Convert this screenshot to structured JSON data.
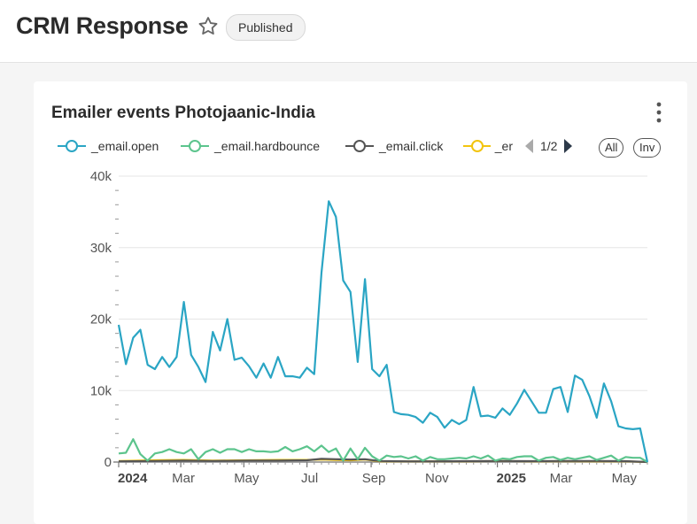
{
  "page": {
    "title": "CRM Response",
    "status_badge": "Published"
  },
  "card": {
    "title": "Emailer events Photojaanic-India",
    "legend": {
      "items": [
        {
          "label": "_email.open",
          "color": "#2aa5c4"
        },
        {
          "label": "_email.hardbounce",
          "color": "#5cc48d"
        },
        {
          "label": "_email.click",
          "color": "#555555"
        },
        {
          "label": "_er",
          "color": "#f2c40f"
        }
      ],
      "page": "1/2",
      "all_label": "All",
      "inv_label": "Inv"
    }
  },
  "chart_data": {
    "type": "line",
    "title": "Emailer events Photojaanic-India",
    "xlabel": "",
    "ylabel": "",
    "ylim": [
      0,
      40000
    ],
    "y_ticks": [
      0,
      10000,
      20000,
      30000,
      40000
    ],
    "y_tick_labels": [
      "0",
      "10k",
      "20k",
      "30k",
      "40k"
    ],
    "x_ticks": [
      {
        "date": "2024-01-01",
        "label": "2024",
        "bold": true
      },
      {
        "date": "2024-03-01",
        "label": "Mar"
      },
      {
        "date": "2024-05-01",
        "label": "May"
      },
      {
        "date": "2024-07-01",
        "label": "Jul"
      },
      {
        "date": "2024-09-01",
        "label": "Sep"
      },
      {
        "date": "2024-11-01",
        "label": "Nov"
      },
      {
        "date": "2025-01-01",
        "label": "2025",
        "bold": true
      },
      {
        "date": "2025-03-01",
        "label": "Mar"
      },
      {
        "date": "2025-05-01",
        "label": "May"
      }
    ],
    "x_range": [
      "2024-01-01",
      "2025-05-26"
    ],
    "grid": true,
    "legend_position": "top",
    "series": [
      {
        "name": "_email.open",
        "color": "#2aa5c4",
        "points": [
          [
            "2024-01-01",
            19200
          ],
          [
            "2024-01-08",
            13700
          ],
          [
            "2024-01-15",
            17400
          ],
          [
            "2024-01-22",
            18500
          ],
          [
            "2024-01-29",
            13600
          ],
          [
            "2024-02-05",
            13000
          ],
          [
            "2024-02-12",
            14700
          ],
          [
            "2024-02-19",
            13300
          ],
          [
            "2024-02-26",
            14700
          ],
          [
            "2024-03-04",
            22400
          ],
          [
            "2024-03-11",
            15000
          ],
          [
            "2024-03-18",
            13300
          ],
          [
            "2024-03-25",
            11200
          ],
          [
            "2024-04-01",
            18200
          ],
          [
            "2024-04-08",
            15600
          ],
          [
            "2024-04-15",
            20000
          ],
          [
            "2024-04-22",
            14300
          ],
          [
            "2024-04-29",
            14600
          ],
          [
            "2024-05-06",
            13400
          ],
          [
            "2024-05-13",
            11800
          ],
          [
            "2024-05-20",
            13800
          ],
          [
            "2024-05-27",
            11800
          ],
          [
            "2024-06-03",
            14700
          ],
          [
            "2024-06-10",
            12000
          ],
          [
            "2024-06-17",
            12000
          ],
          [
            "2024-06-24",
            11800
          ],
          [
            "2024-07-01",
            13200
          ],
          [
            "2024-07-08",
            12300
          ],
          [
            "2024-07-15",
            26500
          ],
          [
            "2024-07-22",
            36500
          ],
          [
            "2024-07-29",
            34300
          ],
          [
            "2024-08-05",
            25400
          ],
          [
            "2024-08-12",
            23800
          ],
          [
            "2024-08-19",
            14000
          ],
          [
            "2024-08-26",
            25600
          ],
          [
            "2024-09-02",
            13000
          ],
          [
            "2024-09-09",
            12000
          ],
          [
            "2024-09-16",
            13600
          ],
          [
            "2024-09-23",
            7000
          ],
          [
            "2024-09-30",
            6700
          ],
          [
            "2024-10-07",
            6600
          ],
          [
            "2024-10-14",
            6300
          ],
          [
            "2024-10-21",
            5500
          ],
          [
            "2024-10-28",
            6900
          ],
          [
            "2024-11-04",
            6300
          ],
          [
            "2024-11-11",
            4800
          ],
          [
            "2024-11-18",
            5900
          ],
          [
            "2024-11-25",
            5300
          ],
          [
            "2024-12-02",
            5900
          ],
          [
            "2024-12-09",
            10500
          ],
          [
            "2024-12-16",
            6400
          ],
          [
            "2024-12-23",
            6500
          ],
          [
            "2024-12-30",
            6200
          ],
          [
            "2025-01-06",
            7500
          ],
          [
            "2025-01-13",
            6600
          ],
          [
            "2025-01-20",
            8200
          ],
          [
            "2025-01-27",
            10100
          ],
          [
            "2025-02-03",
            8500
          ],
          [
            "2025-02-10",
            6900
          ],
          [
            "2025-02-17",
            6900
          ],
          [
            "2025-02-24",
            10200
          ],
          [
            "2025-03-03",
            10500
          ],
          [
            "2025-03-10",
            7000
          ],
          [
            "2025-03-17",
            12100
          ],
          [
            "2025-03-24",
            11500
          ],
          [
            "2025-03-31",
            9200
          ],
          [
            "2025-04-07",
            6200
          ],
          [
            "2025-04-14",
            11000
          ],
          [
            "2025-04-21",
            8500
          ],
          [
            "2025-04-28",
            5000
          ],
          [
            "2025-05-05",
            4700
          ],
          [
            "2025-05-12",
            4600
          ],
          [
            "2025-05-19",
            4700
          ],
          [
            "2025-05-26",
            0
          ]
        ]
      },
      {
        "name": "_email.hardbounce",
        "color": "#5cc48d",
        "points": [
          [
            "2024-01-01",
            1200
          ],
          [
            "2024-01-08",
            1300
          ],
          [
            "2024-01-15",
            3200
          ],
          [
            "2024-01-22",
            1100
          ],
          [
            "2024-01-29",
            200
          ],
          [
            "2024-02-05",
            1200
          ],
          [
            "2024-02-12",
            1400
          ],
          [
            "2024-02-19",
            1800
          ],
          [
            "2024-02-26",
            1400
          ],
          [
            "2024-03-04",
            1200
          ],
          [
            "2024-03-11",
            1800
          ],
          [
            "2024-03-18",
            400
          ],
          [
            "2024-03-25",
            1400
          ],
          [
            "2024-04-01",
            1800
          ],
          [
            "2024-04-08",
            1300
          ],
          [
            "2024-04-15",
            1800
          ],
          [
            "2024-04-22",
            1800
          ],
          [
            "2024-04-29",
            1400
          ],
          [
            "2024-05-06",
            1800
          ],
          [
            "2024-05-13",
            1500
          ],
          [
            "2024-05-20",
            1500
          ],
          [
            "2024-05-27",
            1400
          ],
          [
            "2024-06-03",
            1500
          ],
          [
            "2024-06-10",
            2100
          ],
          [
            "2024-06-17",
            1500
          ],
          [
            "2024-06-24",
            1800
          ],
          [
            "2024-07-01",
            2200
          ],
          [
            "2024-07-08",
            1500
          ],
          [
            "2024-07-15",
            2300
          ],
          [
            "2024-07-22",
            1400
          ],
          [
            "2024-07-29",
            1900
          ],
          [
            "2024-08-05",
            200
          ],
          [
            "2024-08-12",
            1900
          ],
          [
            "2024-08-19",
            400
          ],
          [
            "2024-08-26",
            2000
          ],
          [
            "2024-09-02",
            800
          ],
          [
            "2024-09-09",
            200
          ],
          [
            "2024-09-16",
            900
          ],
          [
            "2024-09-23",
            700
          ],
          [
            "2024-09-30",
            800
          ],
          [
            "2024-10-07",
            500
          ],
          [
            "2024-10-14",
            800
          ],
          [
            "2024-10-21",
            200
          ],
          [
            "2024-10-28",
            700
          ],
          [
            "2024-11-04",
            400
          ],
          [
            "2024-11-11",
            400
          ],
          [
            "2024-11-18",
            500
          ],
          [
            "2024-11-25",
            600
          ],
          [
            "2024-12-02",
            500
          ],
          [
            "2024-12-09",
            800
          ],
          [
            "2024-12-16",
            500
          ],
          [
            "2024-12-23",
            900
          ],
          [
            "2024-12-30",
            200
          ],
          [
            "2025-01-06",
            500
          ],
          [
            "2025-01-13",
            400
          ],
          [
            "2025-01-20",
            700
          ],
          [
            "2025-01-27",
            800
          ],
          [
            "2025-02-03",
            800
          ],
          [
            "2025-02-10",
            200
          ],
          [
            "2025-02-17",
            600
          ],
          [
            "2025-02-24",
            700
          ],
          [
            "2025-03-03",
            300
          ],
          [
            "2025-03-10",
            600
          ],
          [
            "2025-03-17",
            400
          ],
          [
            "2025-03-24",
            600
          ],
          [
            "2025-03-31",
            800
          ],
          [
            "2025-04-07",
            300
          ],
          [
            "2025-04-14",
            600
          ],
          [
            "2025-04-21",
            900
          ],
          [
            "2025-04-28",
            200
          ],
          [
            "2025-05-05",
            700
          ],
          [
            "2025-05-12",
            600
          ],
          [
            "2025-05-19",
            600
          ],
          [
            "2025-05-26",
            0
          ]
        ]
      },
      {
        "name": "_email.click",
        "color": "#555555",
        "points": [
          [
            "2024-01-01",
            100
          ],
          [
            "2024-02-05",
            150
          ],
          [
            "2024-03-04",
            200
          ],
          [
            "2024-04-01",
            150
          ],
          [
            "2024-05-06",
            200
          ],
          [
            "2024-06-03",
            200
          ],
          [
            "2024-07-01",
            250
          ],
          [
            "2024-07-15",
            450
          ],
          [
            "2024-07-29",
            400
          ],
          [
            "2024-08-12",
            350
          ],
          [
            "2024-08-26",
            400
          ],
          [
            "2024-09-09",
            150
          ],
          [
            "2024-10-07",
            100
          ],
          [
            "2024-11-04",
            100
          ],
          [
            "2024-12-02",
            120
          ],
          [
            "2025-01-06",
            150
          ],
          [
            "2025-02-03",
            120
          ],
          [
            "2025-03-03",
            150
          ],
          [
            "2025-04-07",
            150
          ],
          [
            "2025-05-05",
            120
          ],
          [
            "2025-05-26",
            0
          ]
        ]
      },
      {
        "name": "_er",
        "color": "#f2c40f",
        "points": [
          [
            "2024-01-01",
            150
          ],
          [
            "2024-02-05",
            250
          ],
          [
            "2024-03-04",
            300
          ],
          [
            "2024-04-01",
            200
          ],
          [
            "2024-05-06",
            250
          ],
          [
            "2024-06-03",
            300
          ],
          [
            "2024-07-01",
            300
          ],
          [
            "2024-07-15",
            350
          ],
          [
            "2024-07-29",
            300
          ],
          [
            "2024-08-12",
            250
          ],
          [
            "2024-08-26",
            350
          ],
          [
            "2024-09-09",
            100
          ],
          [
            "2024-10-07",
            100
          ],
          [
            "2024-11-04",
            100
          ],
          [
            "2024-12-02",
            100
          ],
          [
            "2025-01-06",
            150
          ],
          [
            "2025-02-03",
            100
          ],
          [
            "2025-03-03",
            120
          ],
          [
            "2025-04-07",
            100
          ],
          [
            "2025-05-05",
            100
          ],
          [
            "2025-05-26",
            0
          ]
        ]
      }
    ]
  }
}
